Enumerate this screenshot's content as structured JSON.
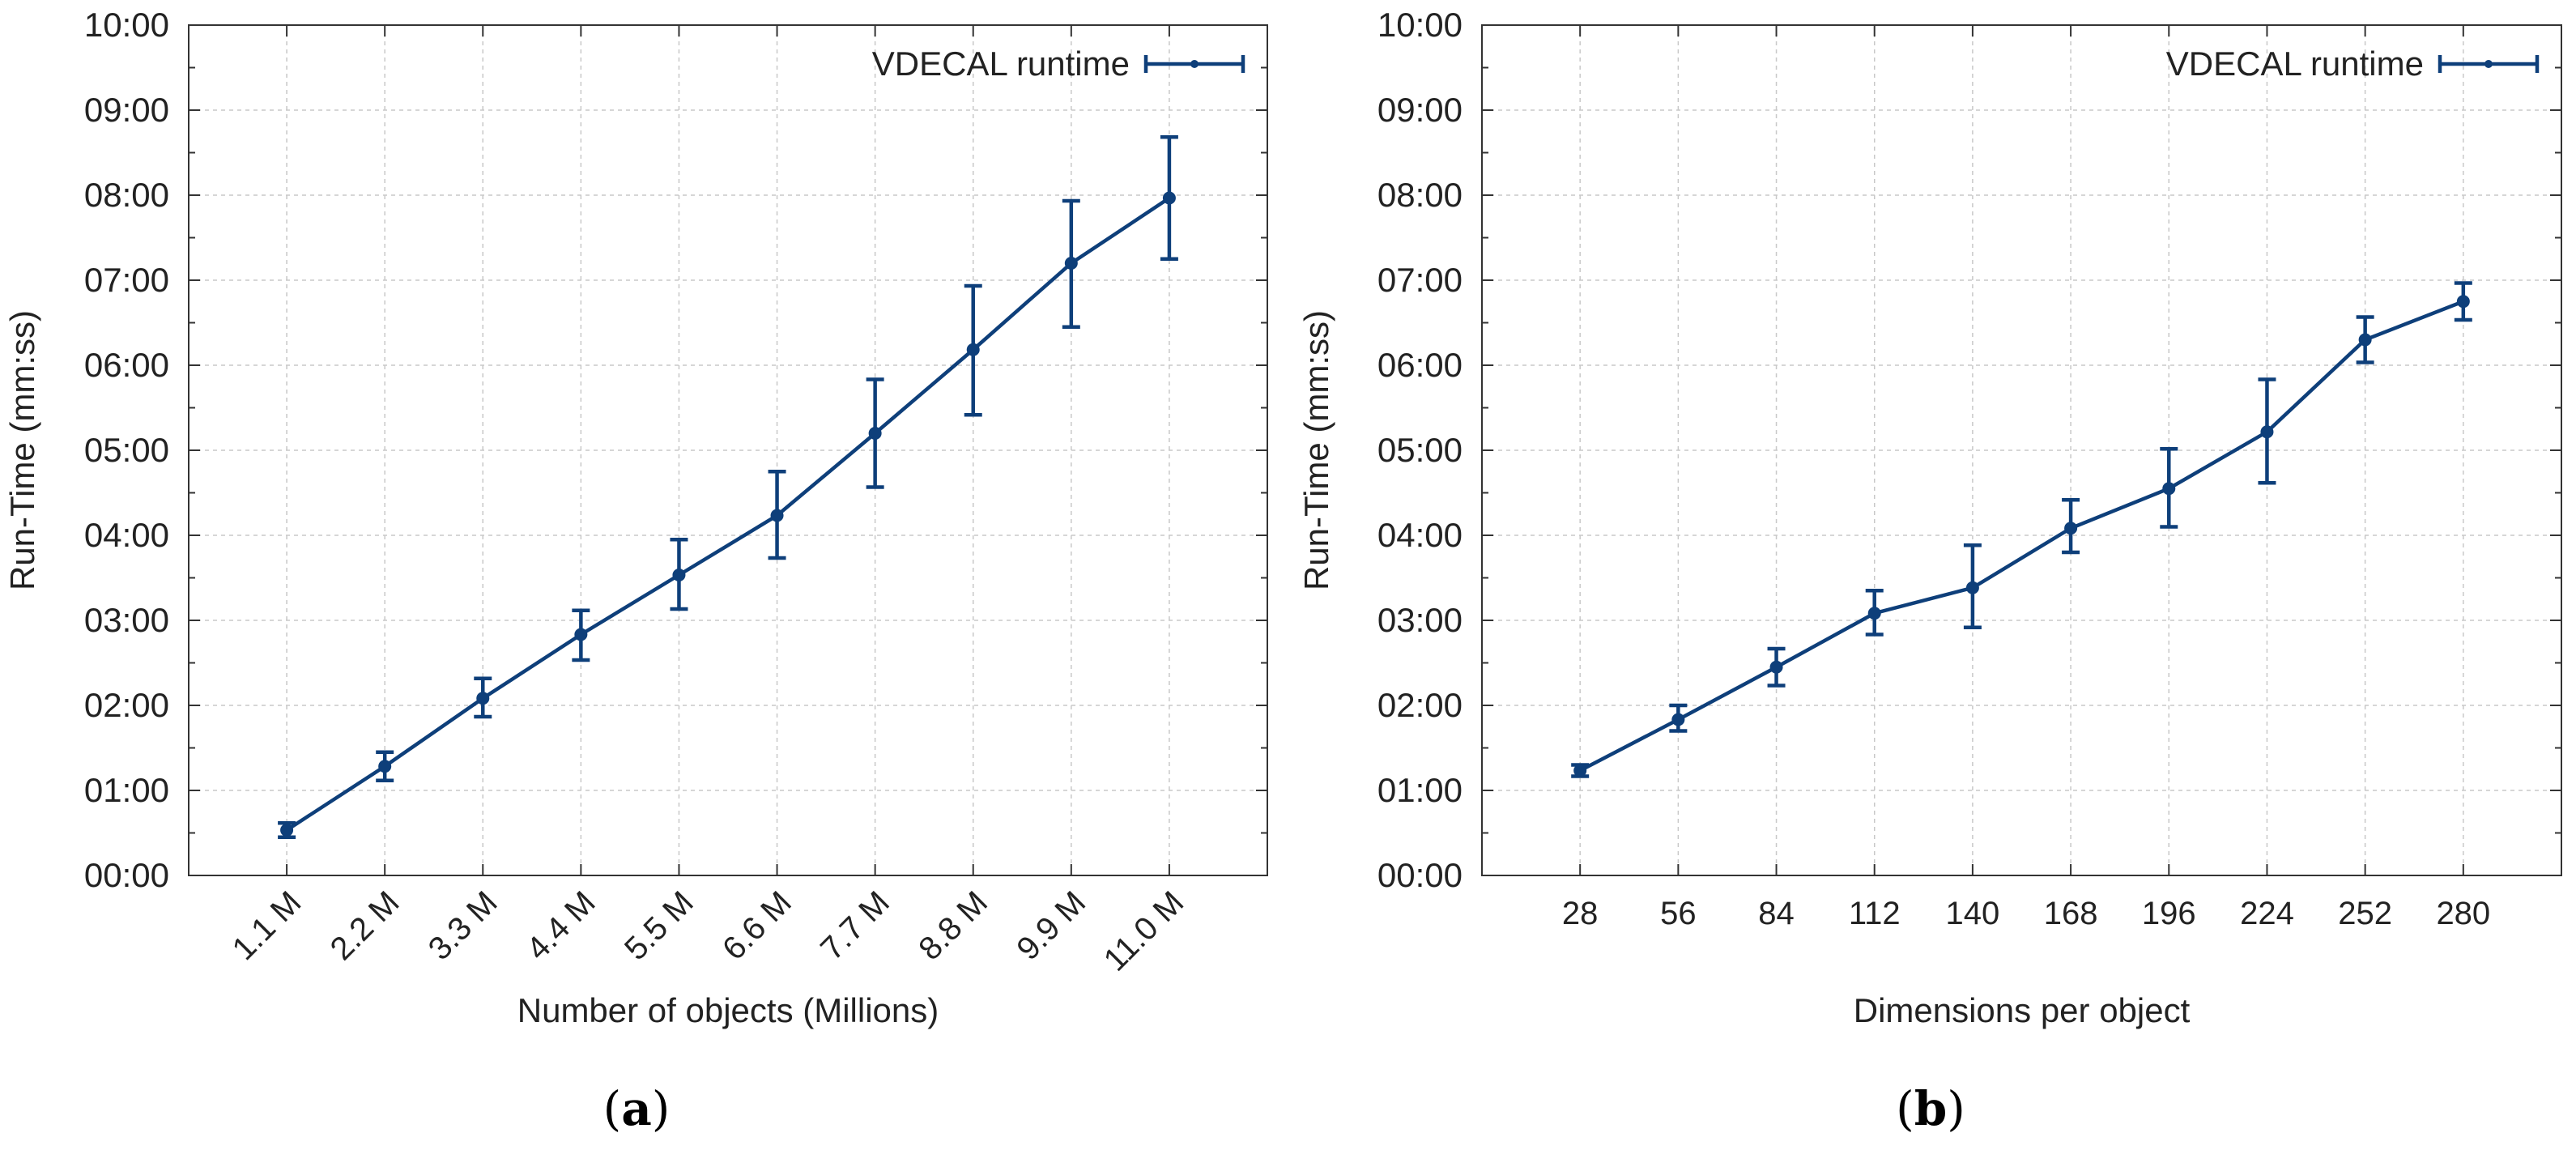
{
  "chart_data": [
    {
      "panel_label_letter": "a",
      "type": "line",
      "title": "",
      "xlabel": "Number of objects (Millions)",
      "ylabel": "Run-Time (mm:ss)",
      "categories": [
        "1.1 M",
        "2.2 M",
        "3.3 M",
        "4.4 M",
        "5.5 M",
        "6.6 M",
        "7.7 M",
        "8.8 M",
        "9.9 M",
        "11.0 M"
      ],
      "x_tick_rotation": "45deg",
      "y_ticks_seconds": [
        0,
        60,
        120,
        180,
        240,
        300,
        360,
        420,
        480,
        540,
        600
      ],
      "y_tick_labels": [
        "00:00",
        "01:00",
        "02:00",
        "03:00",
        "04:00",
        "05:00",
        "06:00",
        "07:00",
        "08:00",
        "09:00",
        "10:00"
      ],
      "ylim_seconds": [
        0,
        600
      ],
      "grid": true,
      "legend": {
        "position": "top-right",
        "entries": [
          "VDECAL runtime"
        ]
      },
      "series": [
        {
          "name": "VDECAL runtime",
          "color": "#0e3f7a",
          "values_seconds": [
            32,
            77,
            125,
            170,
            212,
            254,
            312,
            371,
            432,
            478
          ],
          "error_low_seconds": [
            27,
            67,
            112,
            152,
            188,
            224,
            274,
            325,
            387,
            435
          ],
          "error_high_seconds": [
            37,
            87,
            139,
            187,
            237,
            285,
            350,
            416,
            476,
            521
          ]
        }
      ]
    },
    {
      "panel_label_letter": "b",
      "type": "line",
      "title": "",
      "xlabel": "Dimensions per object",
      "ylabel": "Run-Time (mm:ss)",
      "categories": [
        "28",
        "56",
        "84",
        "112",
        "140",
        "168",
        "196",
        "224",
        "252",
        "280"
      ],
      "x_tick_rotation": "0deg",
      "y_ticks_seconds": [
        0,
        60,
        120,
        180,
        240,
        300,
        360,
        420,
        480,
        540,
        600
      ],
      "y_tick_labels": [
        "00:00",
        "01:00",
        "02:00",
        "03:00",
        "04:00",
        "05:00",
        "06:00",
        "07:00",
        "08:00",
        "09:00",
        "10:00"
      ],
      "ylim_seconds": [
        0,
        600
      ],
      "grid": true,
      "legend": {
        "position": "top-right",
        "entries": [
          "VDECAL runtime"
        ]
      },
      "series": [
        {
          "name": "VDECAL runtime",
          "color": "#0e3f7a",
          "values_seconds": [
            74,
            110,
            147,
            185,
            203,
            245,
            273,
            313,
            378,
            405
          ],
          "error_low_seconds": [
            70,
            102,
            134,
            170,
            175,
            228,
            246,
            277,
            362,
            392
          ],
          "error_high_seconds": [
            78,
            120,
            160,
            201,
            233,
            265,
            301,
            350,
            394,
            418
          ]
        }
      ]
    }
  ]
}
